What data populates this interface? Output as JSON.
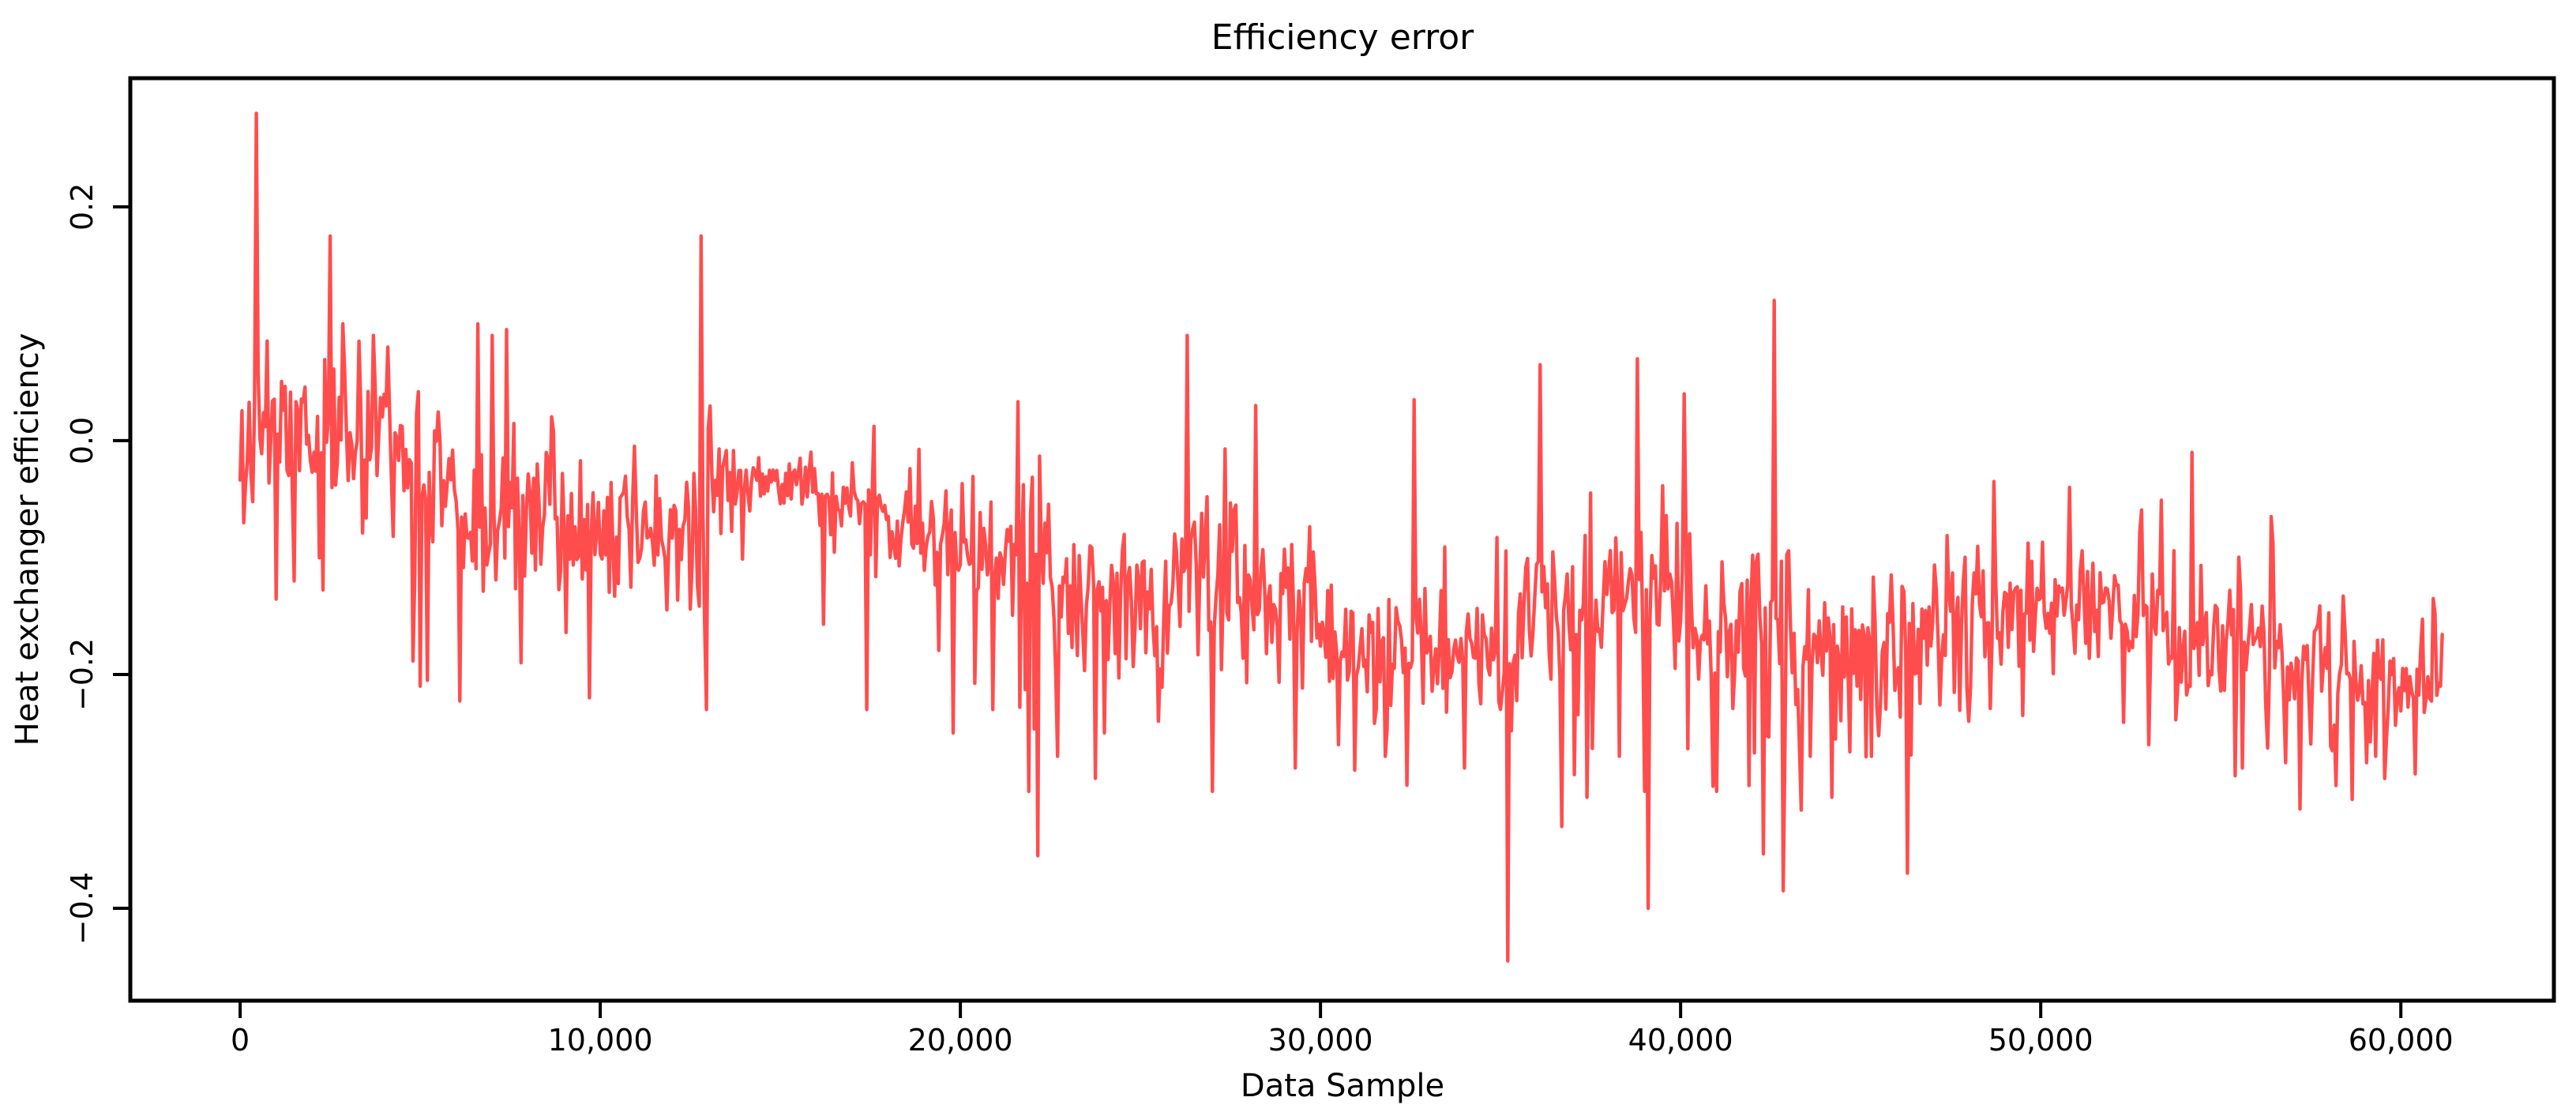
{
  "chart_data": {
    "type": "line",
    "title": "Efficiency error",
    "xlabel": "Data Sample",
    "ylabel": "Heat exchanger efficiency",
    "x_ticks": [
      0,
      10000,
      20000,
      30000,
      40000,
      50000,
      60000
    ],
    "x_tick_labels": [
      "0",
      "10,000",
      "20,000",
      "30,000",
      "40,000",
      "50,000",
      "60,000"
    ],
    "y_ticks": [
      0.2,
      0.0,
      -0.2,
      -0.4
    ],
    "y_tick_labels": [
      "0.2",
      "0.0",
      "−0.2",
      "−0.4"
    ],
    "xlim": [
      -3050,
      64250
    ],
    "ylim": [
      -0.479,
      0.31
    ],
    "grid": false,
    "legend": null,
    "line_color": "#ff4d4d",
    "axis_color": "#000000",
    "background": "#ffffff",
    "series": [
      {
        "name": "Heat exchanger efficiency error",
        "x_start": 0,
        "x_end": 61150,
        "step": 50,
        "seed": 11,
        "baseline_segments": [
          [
            0,
            2600,
            0.005,
            0.0,
            0.034
          ],
          [
            2600,
            4500,
            0.0,
            -0.005,
            0.027
          ],
          [
            4500,
            5600,
            -0.02,
            -0.055,
            0.045
          ],
          [
            5600,
            9000,
            -0.065,
            -0.07,
            0.031
          ],
          [
            9000,
            12600,
            -0.075,
            -0.085,
            0.029
          ],
          [
            12600,
            13200,
            -0.08,
            -0.075,
            0.05
          ],
          [
            13200,
            16200,
            -0.035,
            -0.04,
            0.016
          ],
          [
            16200,
            18600,
            -0.055,
            -0.07,
            0.022
          ],
          [
            18600,
            21500,
            -0.09,
            -0.1,
            0.025
          ],
          [
            21500,
            22600,
            -0.115,
            -0.125,
            0.05
          ],
          [
            22600,
            25900,
            -0.135,
            -0.135,
            0.03
          ],
          [
            25900,
            29900,
            -0.12,
            -0.14,
            0.035
          ],
          [
            29900,
            34900,
            -0.172,
            -0.178,
            0.028
          ],
          [
            34900,
            35500,
            -0.17,
            -0.165,
            0.055
          ],
          [
            35500,
            37900,
            -0.155,
            -0.15,
            0.038
          ],
          [
            37900,
            40300,
            -0.125,
            -0.13,
            0.035
          ],
          [
            40300,
            41700,
            -0.16,
            -0.17,
            0.03
          ],
          [
            41700,
            43100,
            -0.165,
            -0.175,
            0.05
          ],
          [
            43100,
            47000,
            -0.185,
            -0.185,
            0.032
          ],
          [
            47000,
            52200,
            -0.15,
            -0.145,
            0.026
          ],
          [
            52200,
            55400,
            -0.155,
            -0.165,
            0.028
          ],
          [
            55400,
            58600,
            -0.18,
            -0.19,
            0.034
          ],
          [
            58600,
            61200,
            -0.198,
            -0.207,
            0.021
          ]
        ],
        "spikes": [
          [
            450,
            0.28
          ],
          [
            1500,
            -0.12
          ],
          [
            2480,
            0.175
          ],
          [
            2850,
            0.1
          ],
          [
            3300,
            0.085
          ],
          [
            3700,
            0.09
          ],
          [
            4100,
            0.08
          ],
          [
            5000,
            -0.21
          ],
          [
            5200,
            -0.205
          ],
          [
            6600,
            0.1
          ],
          [
            7000,
            0.09
          ],
          [
            7400,
            0.095
          ],
          [
            7800,
            -0.19
          ],
          [
            9700,
            -0.22
          ],
          [
            12800,
            0.175
          ],
          [
            12950,
            -0.23
          ],
          [
            17400,
            -0.23
          ],
          [
            19800,
            -0.25
          ],
          [
            20900,
            -0.23
          ],
          [
            21900,
            -0.3
          ],
          [
            22150,
            -0.355
          ],
          [
            22700,
            -0.27
          ],
          [
            24000,
            -0.25
          ],
          [
            25500,
            -0.24
          ],
          [
            26300,
            0.09
          ],
          [
            27000,
            -0.3
          ],
          [
            28200,
            0.03
          ],
          [
            29300,
            -0.28
          ],
          [
            30500,
            -0.26
          ],
          [
            31800,
            -0.27
          ],
          [
            32600,
            0.035
          ],
          [
            34000,
            -0.28
          ],
          [
            35200,
            -0.445
          ],
          [
            36100,
            0.065
          ],
          [
            36700,
            -0.33
          ],
          [
            37400,
            -0.305
          ],
          [
            38300,
            -0.27
          ],
          [
            38800,
            0.07
          ],
          [
            39100,
            -0.4
          ],
          [
            40100,
            0.04
          ],
          [
            41000,
            -0.3
          ],
          [
            41900,
            -0.295
          ],
          [
            42600,
            0.12
          ],
          [
            42850,
            -0.385
          ],
          [
            43600,
            -0.27
          ],
          [
            44200,
            -0.305
          ],
          [
            45300,
            -0.27
          ],
          [
            46300,
            -0.37
          ],
          [
            48000,
            -0.24
          ],
          [
            48700,
            -0.035
          ],
          [
            49500,
            -0.235
          ],
          [
            50800,
            -0.04
          ],
          [
            53000,
            -0.26
          ],
          [
            54200,
            -0.01
          ],
          [
            55600,
            -0.28
          ],
          [
            56400,
            -0.065
          ],
          [
            57200,
            -0.315
          ],
          [
            58200,
            -0.295
          ],
          [
            59300,
            -0.27
          ],
          [
            60400,
            -0.285
          ],
          [
            60900,
            -0.135
          ],
          [
            61100,
            -0.21
          ]
        ]
      }
    ]
  }
}
